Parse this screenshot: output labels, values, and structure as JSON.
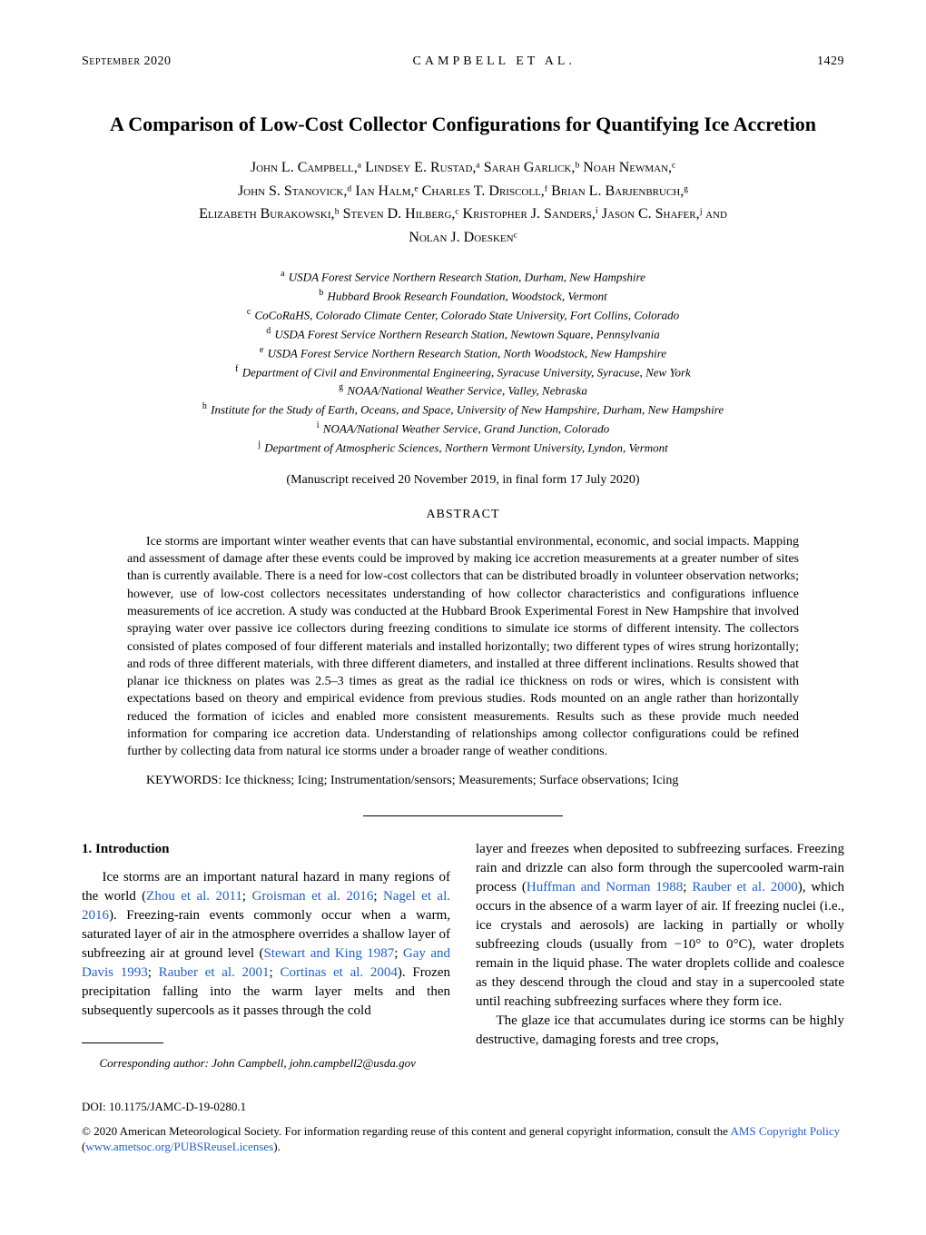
{
  "runningHead": {
    "month": "September 2020",
    "authors": "CAMPBELL ET AL.",
    "pageNumber": "1429"
  },
  "title": "A Comparison of Low-Cost Collector Configurations for Quantifying Ice Accretion",
  "authorLine1": "John L. Campbell,ᵃ Lindsey E. Rustad,ᵃ Sarah Garlick,ᵇ Noah Newman,ᶜ",
  "authorLine2": "John S. Stanovick,ᵈ Ian Halm,ᵉ Charles T. Driscoll,ᶠ Brian L. Barjenbruch,ᵍ",
  "authorLine3": "Elizabeth Burakowski,ʰ Steven D. Hilberg,ᶜ Kristopher J. Sanders,ⁱ Jason C. Shafer,ʲ and",
  "authorLine4": "Nolan J. Doeskenᶜ",
  "affiliations": {
    "a": "USDA Forest Service Northern Research Station, Durham, New Hampshire",
    "b": "Hubbard Brook Research Foundation, Woodstock, Vermont",
    "c": "CoCoRaHS, Colorado Climate Center, Colorado State University, Fort Collins, Colorado",
    "d": "USDA Forest Service Northern Research Station, Newtown Square, Pennsylvania",
    "e": "USDA Forest Service Northern Research Station, North Woodstock, New Hampshire",
    "f": "Department of Civil and Environmental Engineering, Syracuse University, Syracuse, New York",
    "g": "NOAA/National Weather Service, Valley, Nebraska",
    "h": "Institute for the Study of Earth, Oceans, and Space, University of New Hampshire, Durham, New Hampshire",
    "i": "NOAA/National Weather Service, Grand Junction, Colorado",
    "j": "Department of Atmospheric Sciences, Northern Vermont University, Lyndon, Vermont"
  },
  "received": "(Manuscript received 20 November 2019, in final form 17 July 2020)",
  "abstractHeading": "ABSTRACT",
  "abstractBody": "Ice storms are important winter weather events that can have substantial environmental, economic, and social impacts. Mapping and assessment of damage after these events could be improved by making ice accretion measurements at a greater number of sites than is currently available. There is a need for low-cost collectors that can be distributed broadly in volunteer observation networks; however, use of low-cost collectors necessitates understanding of how collector characteristics and configurations influence measurements of ice accretion. A study was conducted at the Hubbard Brook Experimental Forest in New Hampshire that involved spraying water over passive ice collectors during freezing conditions to simulate ice storms of different intensity. The collectors consisted of plates composed of four different materials and installed horizontally; two different types of wires strung horizontally; and rods of three different materials, with three different diameters, and installed at three different inclinations. Results showed that planar ice thickness on plates was 2.5–3 times as great as the radial ice thickness on rods or wires, which is consistent with expectations based on theory and empirical evidence from previous studies. Rods mounted on an angle rather than horizontally reduced the formation of icicles and enabled more consistent measurements. Results such as these provide much needed information for comparing ice accretion data. Understanding of relationships among collector configurations could be refined further by collecting data from natural ice storms under a broader range of weather conditions.",
  "keywordsLabel": "KEYWORDS: ",
  "keywords": "Ice thickness; Icing; Instrumentation/sensors; Measurements; Surface observations; Icing",
  "sectionHeading": "1. Introduction",
  "col1": {
    "p1a": "Ice storms are an important natural hazard in many regions of the world (",
    "cite1": "Zhou et al. 2011",
    "p1b": "; ",
    "cite2": "Groisman et al. 2016",
    "p1c": "; ",
    "cite3": "Nagel et al. 2016",
    "p1d": "). Freezing-rain events commonly occur when a warm, saturated layer of air in the atmosphere overrides a shallow layer of subfreezing air at ground level (",
    "cite4": "Stewart and King 1987",
    "p1e": "; ",
    "cite5": "Gay and Davis 1993",
    "p1f": "; ",
    "cite6": "Rauber et al. 2001",
    "p1g": "; ",
    "cite7": "Cortinas et al. 2004",
    "p1h": "). Frozen precipitation falling into the warm layer melts and then subsequently supercools as it passes through the cold"
  },
  "col2": {
    "p1a": "layer and freezes when deposited to subfreezing surfaces. Freezing rain and drizzle can also form through the supercooled warm-rain process (",
    "cite1": "Huffman and Norman 1988",
    "p1b": "; ",
    "cite2": "Rauber et al. 2000",
    "p1c": "), which occurs in the absence of a warm layer of air. If freezing nuclei (i.e., ice crystals and aerosols) are lacking in partially or wholly subfreezing clouds (usually from −10° to 0°C), water droplets remain in the liquid phase. The water droplets collide and coalesce as they descend through the cloud and stay in a supercooled state until reaching subfreezing surfaces where they form ice.",
    "p2": "The glaze ice that accumulates during ice storms can be highly destructive, damaging forests and tree crops,"
  },
  "footnote": {
    "label": "Corresponding author",
    "text": ": John Campbell, john.campbell2@usda.gov"
  },
  "doi": "DOI: 10.1175/JAMC-D-19-0280.1",
  "copyright": {
    "pre": "© 2020 American Meteorological Society. For information regarding reuse of this content and general copyright information, consult the ",
    "link1": "AMS Copyright Policy",
    "mid": " (",
    "link2": "www.ametsoc.org/PUBSReuseLicenses",
    "post": ")."
  },
  "colors": {
    "text": "#000000",
    "link": "#2160c4",
    "background": "#ffffff"
  }
}
